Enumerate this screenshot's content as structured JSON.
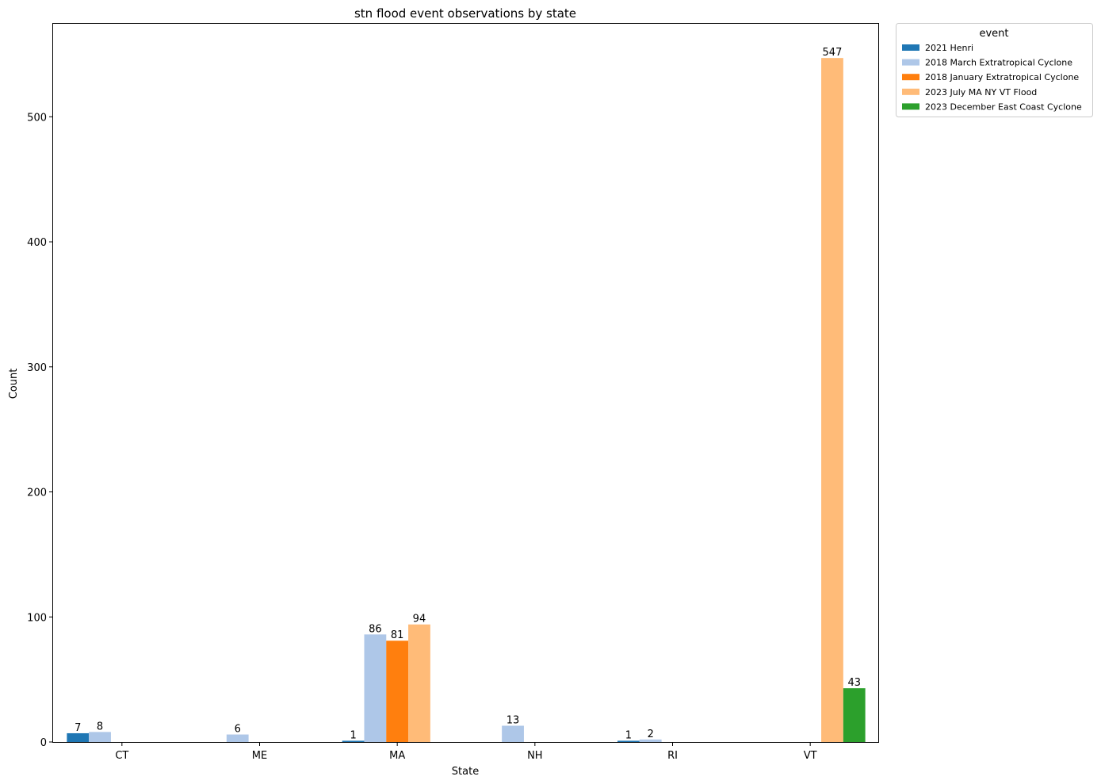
{
  "chart_data": {
    "type": "bar",
    "title": "stn flood event observations by state",
    "xlabel": "State",
    "ylabel": "Count",
    "ylim": [
      0,
      575
    ],
    "yticks": [
      0,
      100,
      200,
      300,
      400,
      500
    ],
    "grid": false,
    "legend_position": "outside-top-right",
    "legend_title": "event",
    "categories": [
      "CT",
      "ME",
      "MA",
      "NH",
      "RI",
      "VT"
    ],
    "series": [
      {
        "name": "2021 Henri",
        "color": "#1f77b4",
        "values": [
          7,
          null,
          1,
          null,
          1,
          null
        ]
      },
      {
        "name": "2018 March Extratropical Cyclone",
        "color": "#aec7e8",
        "values": [
          8,
          6,
          86,
          13,
          2,
          null
        ]
      },
      {
        "name": "2018 January Extratropical Cyclone",
        "color": "#ff7f0e",
        "values": [
          null,
          null,
          81,
          null,
          null,
          null
        ]
      },
      {
        "name": "2023 July MA NY VT Flood",
        "color": "#ffbb78",
        "values": [
          null,
          null,
          94,
          null,
          null,
          547
        ]
      },
      {
        "name": "2023 December East Coast Cyclone",
        "color": "#2ca02c",
        "values": [
          null,
          null,
          null,
          null,
          null,
          43
        ]
      }
    ]
  }
}
